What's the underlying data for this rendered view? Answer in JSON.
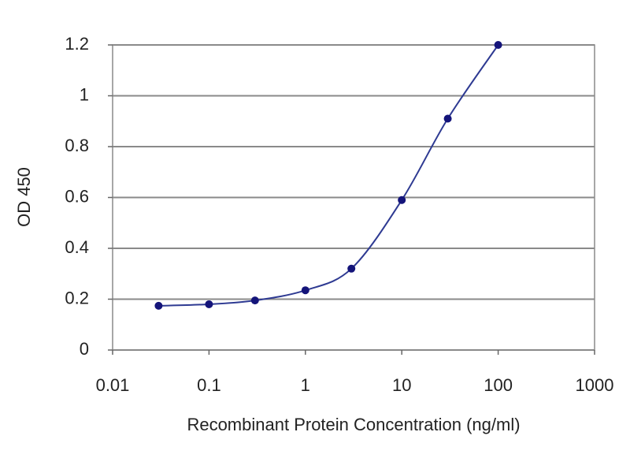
{
  "chart_data": {
    "type": "scatter-line",
    "x_label": "Recombinant Protein Concentration (ng/ml)",
    "y_label": "OD 450",
    "x": [
      0.03,
      0.1,
      0.3,
      1,
      3,
      10,
      30,
      100
    ],
    "values": [
      0.174,
      0.18,
      0.195,
      0.235,
      0.32,
      0.59,
      0.91,
      1.2
    ],
    "color": "#2e3a92",
    "marker_color": "#14147a",
    "x_log": true,
    "xlim": [
      0.01,
      1000
    ],
    "xticks": [
      0.01,
      0.1,
      1,
      10,
      100,
      1000
    ],
    "ylim": [
      0,
      1.2
    ],
    "yticks": [
      0,
      0.2,
      0.4,
      0.6,
      0.8,
      1,
      1.2
    ],
    "grid": true
  }
}
